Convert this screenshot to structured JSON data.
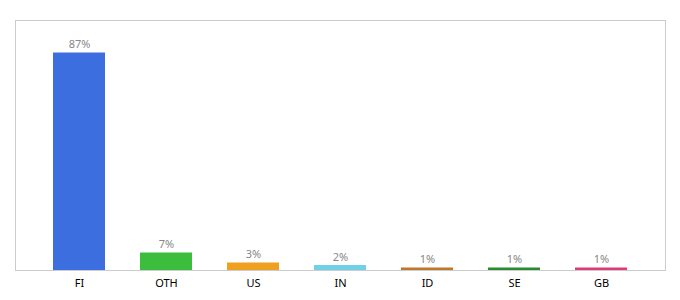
{
  "chart_data": {
    "type": "bar",
    "categories": [
      "FI",
      "OTH",
      "US",
      "IN",
      "ID",
      "SE",
      "GB"
    ],
    "values": [
      87,
      7,
      3,
      2,
      1,
      1,
      1
    ],
    "value_labels": [
      "87%",
      "7%",
      "3%",
      "2%",
      "1%",
      "1%",
      "1%"
    ],
    "colors": [
      "#3C6EE0",
      "#3DBD3D",
      "#F0A020",
      "#70D0E8",
      "#C07828",
      "#2A8A30",
      "#E03878"
    ],
    "ylim": [
      0,
      100
    ],
    "data_labels": true,
    "tick_labels": "x"
  }
}
